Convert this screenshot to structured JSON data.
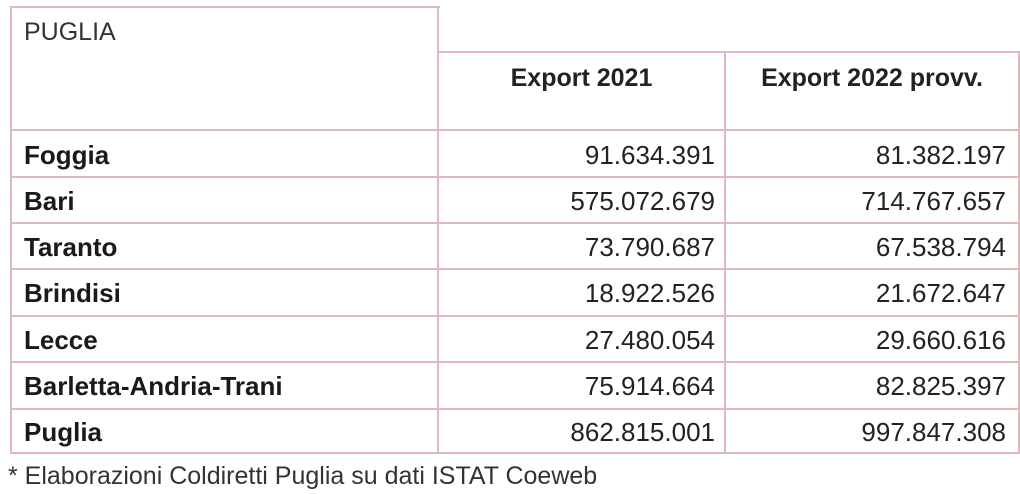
{
  "table": {
    "title": "PUGLIA",
    "columns": [
      "Export 2021",
      "Export 2022 provv."
    ],
    "rows": [
      {
        "label": "Foggia",
        "export_2021": "91.634.391",
        "export_2022": "81.382.197"
      },
      {
        "label": "Bari",
        "export_2021": "575.072.679",
        "export_2022": "714.767.657"
      },
      {
        "label": "Taranto",
        "export_2021": "73.790.687",
        "export_2022": "67.538.794"
      },
      {
        "label": "Brindisi",
        "export_2021": "18.922.526",
        "export_2022": "21.672.647"
      },
      {
        "label": "Lecce",
        "export_2021": "27.480.054",
        "export_2022": "29.660.616"
      },
      {
        "label": "Barletta-Andria-Trani",
        "export_2021": "75.914.664",
        "export_2022": "82.825.397"
      },
      {
        "label": "Puglia",
        "export_2021": "862.815.001",
        "export_2022": "997.847.308"
      }
    ]
  },
  "footnote": "* Elaborazioni Coldiretti Puglia su dati ISTAT Coeweb",
  "colors": {
    "border": "#e2b8c0",
    "text": "#222222"
  }
}
